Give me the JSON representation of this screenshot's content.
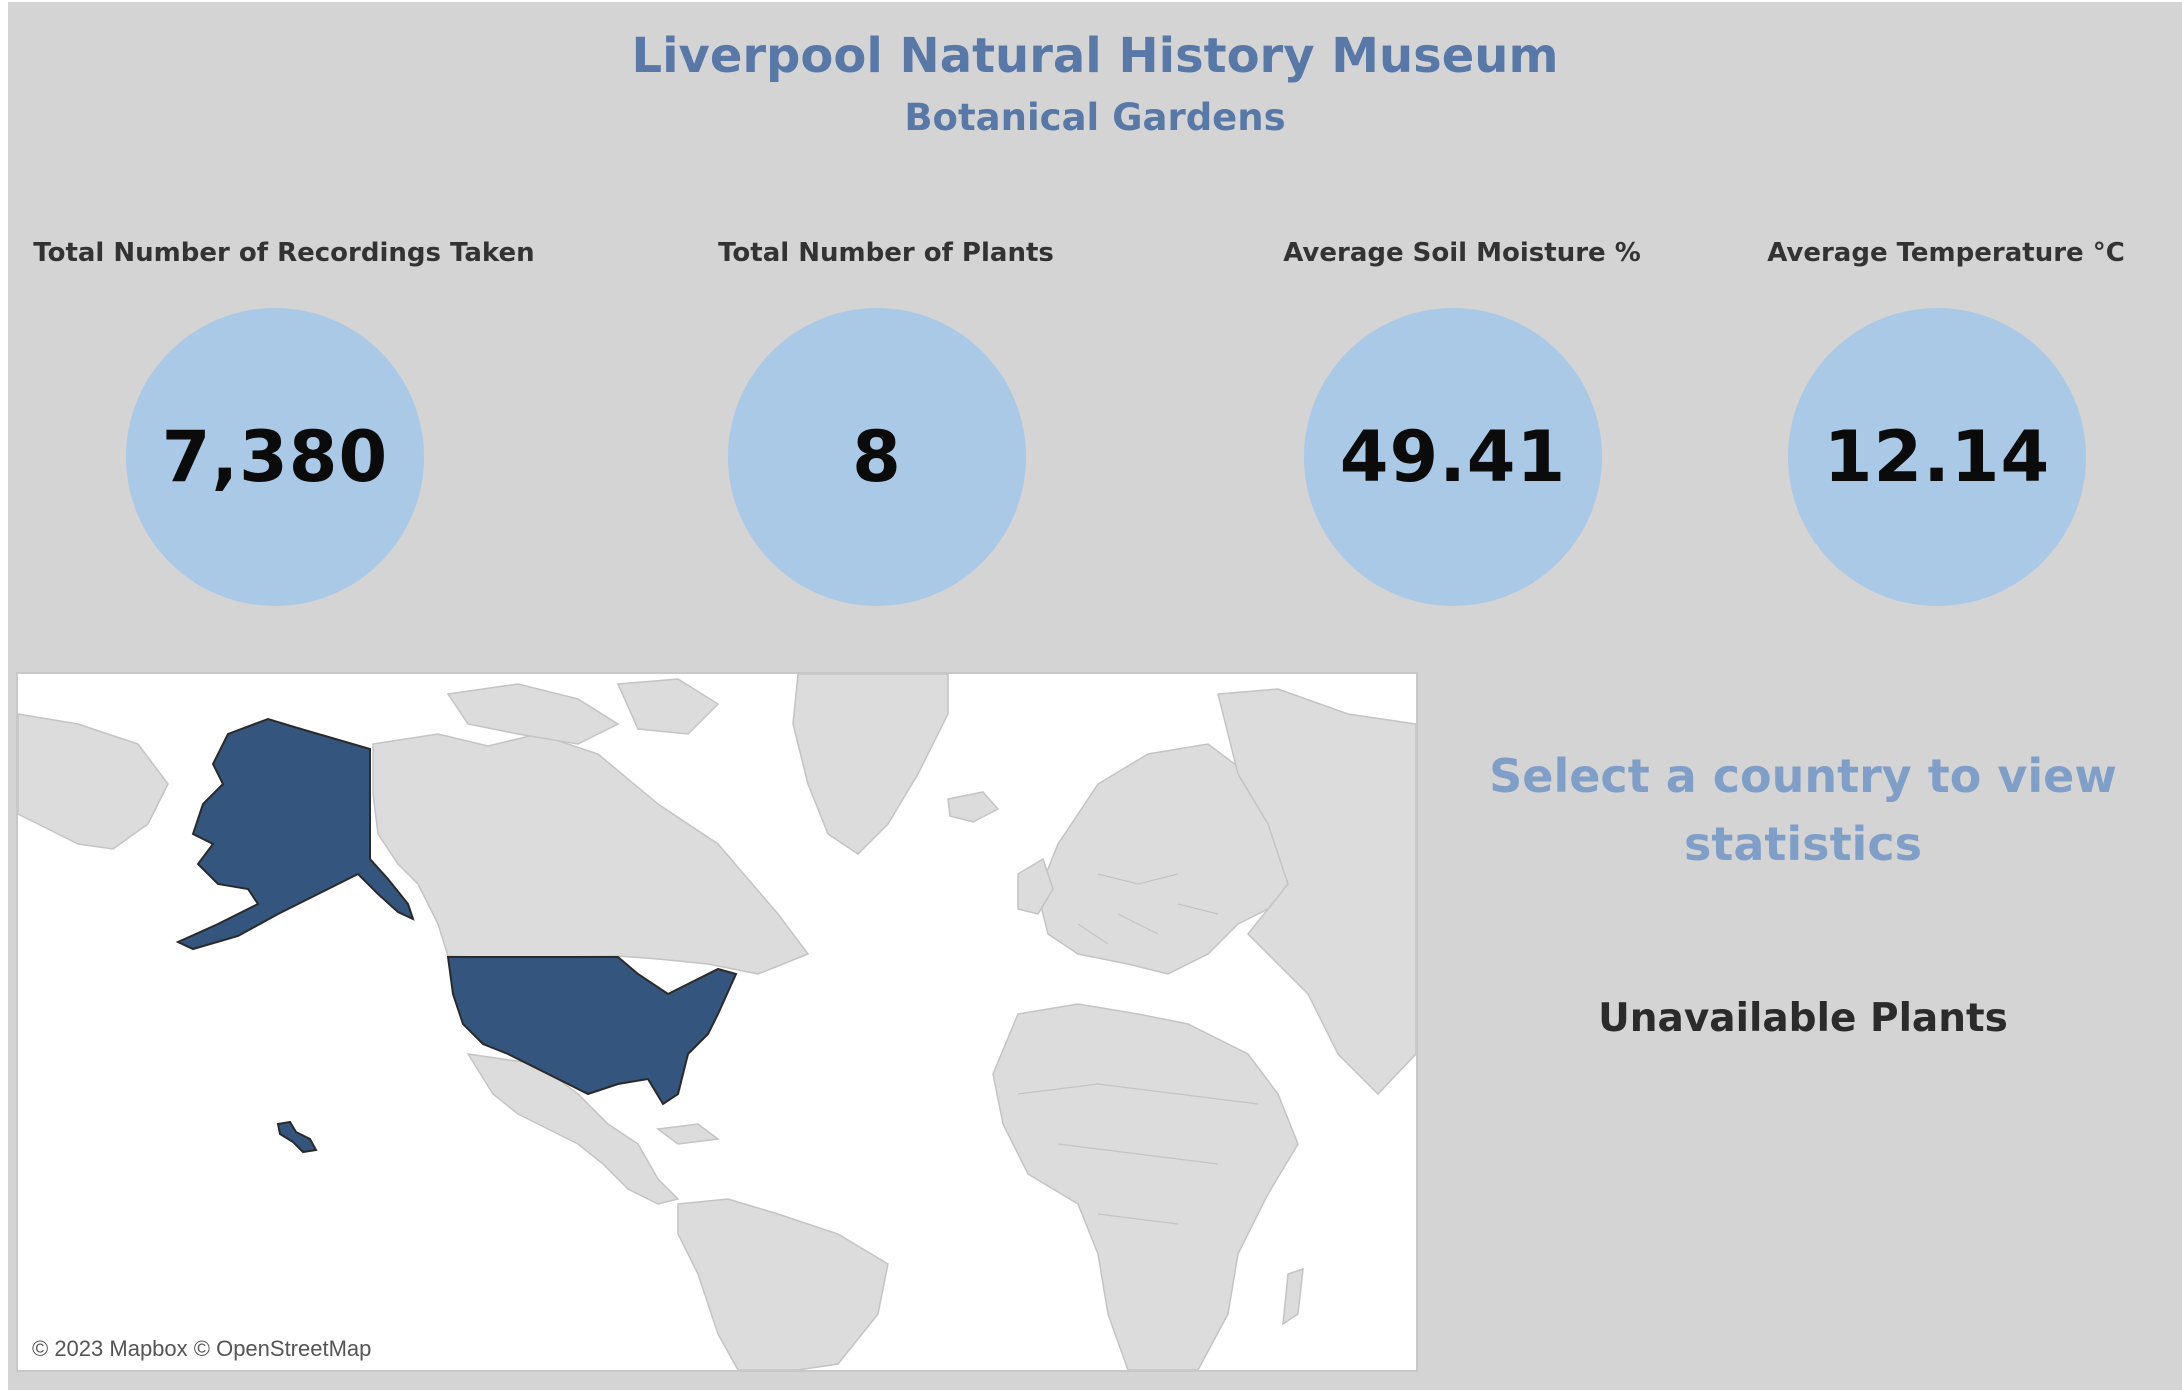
{
  "header": {
    "title": "Liverpool Natural History Museum",
    "subtitle": "Botanical Gardens"
  },
  "kpis": [
    {
      "label": "Total Number of Recordings Taken",
      "value": "7,380"
    },
    {
      "label": "Total Number of Plants",
      "value": "8"
    },
    {
      "label": "Average Soil Moisture %",
      "value": "49.41"
    },
    {
      "label": "Average Temperature °C",
      "value": "12.14"
    }
  ],
  "map": {
    "highlighted_country": "United States",
    "attribution": "© 2023 Mapbox  © OpenStreetMap",
    "colors": {
      "highlight": "#34557d",
      "land": "#dcdcdc",
      "water": "#ffffff"
    }
  },
  "side_panel": {
    "prompt": "Select a country to view statistics",
    "unavailable_title": "Unavailable Plants"
  },
  "colors": {
    "background": "#d4d4d4",
    "title": "#5878a8",
    "circle": "#a9c9e6",
    "prompt": "#7f9fc8"
  }
}
